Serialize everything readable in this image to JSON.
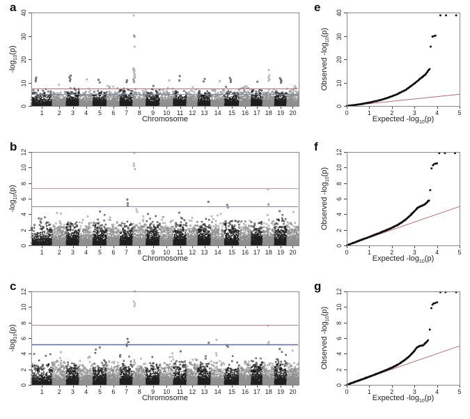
{
  "figure": {
    "background": "#ffffff"
  },
  "chart_data": [
    {
      "id": "a",
      "panel_label": "a",
      "type": "scatter",
      "subtype": "manhattan",
      "xlabel": "Chromosome",
      "ylabel": "-log10(p)",
      "ylabel_parts": {
        "prefix": "-log",
        "sub": "10",
        "suffix": "(p)"
      },
      "ylim": [
        0,
        40
      ],
      "yticks": [
        0,
        10,
        20,
        30,
        40
      ],
      "categories": [
        "1",
        "2",
        "3",
        "4",
        "5",
        "6",
        "7",
        "8",
        "9",
        "10",
        "11",
        "12",
        "13",
        "14",
        "15",
        "16",
        "17",
        "18",
        "19",
        "20"
      ],
      "chr_weights": [
        30,
        20,
        18.5,
        19.5,
        20,
        18.5,
        18.5,
        19,
        19.5,
        19.5,
        19,
        16,
        18.5,
        19.5,
        21,
        17,
        16.5,
        17,
        17.5,
        17
      ],
      "point_colors": {
        "odd_chr": "#1f1f1f",
        "even_chr": "#8f8f8f"
      },
      "grid": false,
      "threshold_lines": [
        {
          "name": "genome-wide-significance",
          "y": 7.5,
          "color": "#c06a72",
          "width": 1
        },
        {
          "name": "suggestive-significance",
          "y": 5.0,
          "color": "#8089a9",
          "width": 1
        }
      ],
      "cloud": {
        "seed": 11,
        "points_per_chr": 820,
        "exp_scale": 1.35,
        "chr_max_base": 6.2,
        "chr_max_jitter": 2.6,
        "solid_below": 4.2
      },
      "peaks": [
        {
          "chr": 8,
          "pos": 0.1,
          "values": [
            38.8,
            30.2,
            29.9,
            29.7,
            25.4,
            16.1,
            15.6,
            15.2,
            14.6,
            13.9,
            13.2,
            12.6,
            12.1,
            11.6,
            11.2,
            10.8,
            10.4,
            10.1
          ]
        },
        {
          "chr": 18,
          "pos": 0.55,
          "values": [
            15.4,
            13.1,
            12.2,
            11.4,
            10.8
          ]
        },
        {
          "chr": 3,
          "pos": 0.3,
          "values": [
            13.0,
            12.3,
            11.5,
            10.7
          ]
        },
        {
          "chr": 1,
          "pos": 0.25,
          "values": [
            12.1,
            11.4,
            10.6
          ]
        },
        {
          "chr": 15,
          "pos": 0.4,
          "values": [
            12.0,
            11.2,
            10.3
          ]
        },
        {
          "chr": 19,
          "pos": 0.5,
          "values": [
            11.9,
            11.2,
            10.6,
            10.0
          ]
        },
        {
          "chr": 11,
          "pos": 0.45,
          "values": [
            12.8,
            10.9
          ]
        },
        {
          "chr": 13,
          "pos": 0.5,
          "values": [
            11.6,
            10.5
          ]
        },
        {
          "chr": 5,
          "pos": 0.45,
          "values": [
            11.2,
            10.1
          ]
        },
        {
          "chr": 7,
          "pos": 0.5,
          "values": [
            11.0,
            10.2
          ]
        },
        {
          "chr": 4,
          "pos": 0.5,
          "values": [
            11.4
          ]
        },
        {
          "chr": 14,
          "pos": 0.6,
          "values": [
            10.6
          ]
        },
        {
          "chr": 17,
          "pos": 0.5,
          "values": [
            10.4
          ]
        },
        {
          "chr": 10,
          "pos": 0.7,
          "values": [
            10.9
          ]
        },
        {
          "chr": 9,
          "pos": 0.5,
          "values": [
            8.6
          ]
        },
        {
          "chr": 2,
          "pos": 0.5,
          "values": [
            9.1
          ]
        }
      ]
    },
    {
      "id": "b",
      "panel_label": "b",
      "type": "scatter",
      "subtype": "manhattan",
      "xlabel": "Chromosome",
      "ylabel": "-log10(p)",
      "ylabel_parts": {
        "prefix": "-log",
        "sub": "10",
        "suffix": "(p)"
      },
      "ylim": [
        0,
        12
      ],
      "yticks": [
        0,
        2,
        4,
        6,
        8,
        10,
        12
      ],
      "categories": [
        "1",
        "2",
        "3",
        "4",
        "5",
        "6",
        "7",
        "8",
        "9",
        "10",
        "11",
        "12",
        "13",
        "14",
        "15",
        "16",
        "17",
        "18",
        "19",
        "20"
      ],
      "chr_weights": [
        30,
        20,
        18.5,
        19.5,
        20,
        18.5,
        18.5,
        19,
        19.5,
        19.5,
        19,
        16,
        18.5,
        19.5,
        21,
        17,
        16.5,
        17,
        17.5,
        17
      ],
      "point_colors": {
        "odd_chr": "#1f1f1f",
        "even_chr": "#8f8f8f"
      },
      "grid": false,
      "threshold_lines": [
        {
          "name": "genome-wide-significance",
          "y": 7.3,
          "color": "#cb9198",
          "width": 1
        },
        {
          "name": "suggestive-significance",
          "y": 5.0,
          "color": "#7d87a6",
          "width": 1
        }
      ],
      "cloud": {
        "seed": 22,
        "points_per_chr": 820,
        "exp_scale": 0.6,
        "chr_max_base": 3.0,
        "chr_max_jitter": 1.8,
        "solid_below": 1.7
      },
      "peaks": [
        {
          "chr": 8,
          "pos": 0.1,
          "values": [
            11.9,
            10.5,
            10.2,
            9.8
          ]
        },
        {
          "chr": 18,
          "pos": 0.5,
          "values": [
            7.2,
            5.3,
            5.2
          ]
        },
        {
          "chr": 7,
          "pos": 0.6,
          "values": [
            5.9,
            5.4,
            5.1
          ]
        },
        {
          "chr": 8,
          "pos": 0.3,
          "values": [
            4.6,
            4.3
          ]
        },
        {
          "chr": 13,
          "pos": 0.85,
          "values": [
            5.6
          ]
        },
        {
          "chr": 15,
          "pos": 0.2,
          "values": [
            5.2,
            4.9
          ]
        },
        {
          "chr": 2,
          "pos": 0.65,
          "values": [
            4.1
          ]
        },
        {
          "chr": 5,
          "pos": 0.45,
          "values": [
            4.35
          ]
        },
        {
          "chr": 11,
          "pos": 0.5,
          "values": [
            4.2
          ]
        },
        {
          "chr": 19,
          "pos": 0.4,
          "values": [
            4.4
          ]
        },
        {
          "chr": 20,
          "pos": 0.5,
          "values": [
            4.3
          ]
        }
      ]
    },
    {
      "id": "c",
      "panel_label": "c",
      "type": "scatter",
      "subtype": "manhattan",
      "xlabel": "Chromosome",
      "ylabel": "-log10(p)",
      "ylabel_parts": {
        "prefix": "-log",
        "sub": "10",
        "suffix": "(p)"
      },
      "ylim": [
        0,
        12
      ],
      "yticks": [
        0,
        2,
        4,
        6,
        8,
        10,
        12
      ],
      "categories": [
        "1",
        "2",
        "3",
        "4",
        "5",
        "6",
        "7",
        "8",
        "9",
        "10",
        "11",
        "12",
        "13",
        "14",
        "15",
        "16",
        "17",
        "18",
        "19",
        "20"
      ],
      "chr_weights": [
        30,
        20,
        18.5,
        19.5,
        20,
        18.5,
        18.5,
        19,
        19.5,
        19.5,
        19,
        16,
        18.5,
        19.5,
        21,
        17,
        16.5,
        17,
        17.5,
        17
      ],
      "point_colors": {
        "odd_chr": "#1f1f1f",
        "even_chr": "#8f8f8f"
      },
      "grid": false,
      "threshold_lines": [
        {
          "name": "genome-wide-significance",
          "y": 7.7,
          "color": "#c57f86",
          "width": 1
        },
        {
          "name": "suggestive-significance",
          "y": 5.2,
          "color": "#5a68a8",
          "width": 1.6
        }
      ],
      "cloud": {
        "seed": 33,
        "points_per_chr": 820,
        "exp_scale": 0.6,
        "chr_max_base": 3.0,
        "chr_max_jitter": 1.8,
        "solid_below": 1.7
      },
      "peaks": [
        {
          "chr": 8,
          "pos": 0.1,
          "values": [
            12.0,
            10.7,
            10.4,
            10.1
          ]
        },
        {
          "chr": 18,
          "pos": 0.5,
          "values": [
            7.6,
            5.5,
            5.3
          ]
        },
        {
          "chr": 7,
          "pos": 0.6,
          "values": [
            5.9,
            5.5,
            5.2,
            5.0
          ]
        },
        {
          "chr": 14,
          "pos": 0.4,
          "values": [
            5.8
          ]
        },
        {
          "chr": 13,
          "pos": 0.85,
          "values": [
            5.4
          ]
        },
        {
          "chr": 15,
          "pos": 0.2,
          "values": [
            5.1,
            4.9
          ]
        },
        {
          "chr": 5,
          "pos": 0.45,
          "values": [
            4.8
          ]
        },
        {
          "chr": 2,
          "pos": 0.65,
          "values": [
            4.2
          ]
        },
        {
          "chr": 11,
          "pos": 0.5,
          "values": [
            4.3
          ]
        },
        {
          "chr": 19,
          "pos": 0.4,
          "values": [
            4.6
          ]
        },
        {
          "chr": 20,
          "pos": 0.5,
          "values": [
            4.4
          ]
        }
      ]
    },
    {
      "id": "e",
      "panel_label": "e",
      "type": "scatter",
      "subtype": "qq",
      "xlabel": "Expected -log10(p)",
      "xlabel_parts": {
        "prefix": "Expected -log",
        "sub": "10",
        "suffix": "(p)"
      },
      "ylabel": "Observed -log10(p)",
      "ylabel_parts": {
        "prefix": "Observed -log",
        "sub": "10",
        "suffix": "(p)"
      },
      "xlim": [
        0,
        5
      ],
      "ylim": [
        0,
        40
      ],
      "xticks": [
        0,
        1,
        2,
        3,
        4,
        5
      ],
      "yticks": [
        0,
        10,
        20,
        30,
        40
      ],
      "grid": false,
      "point_color": "#141414",
      "identity_line": {
        "color": "#c26a6a",
        "from": [
          0,
          0
        ],
        "to": [
          5,
          5
        ]
      },
      "curve": [
        [
          0,
          0
        ],
        [
          0.3,
          0.35
        ],
        [
          0.6,
          0.75
        ],
        [
          1,
          1.45
        ],
        [
          1.4,
          2.3
        ],
        [
          1.8,
          3.4
        ],
        [
          2.2,
          4.9
        ],
        [
          2.6,
          6.8
        ],
        [
          3.0,
          9.6
        ],
        [
          3.2,
          11.2
        ],
        [
          3.35,
          12.4
        ],
        [
          3.5,
          13.6
        ],
        [
          3.6,
          15.0
        ],
        [
          3.68,
          15.9
        ]
      ],
      "outliers": [
        [
          3.72,
          25.4
        ],
        [
          3.8,
          29.7
        ],
        [
          3.86,
          29.9
        ],
        [
          3.93,
          30.1
        ],
        [
          4.15,
          38.8
        ],
        [
          4.4,
          38.8
        ],
        [
          4.85,
          38.8
        ]
      ],
      "jitter": 0.3,
      "seed": 44
    },
    {
      "id": "f",
      "panel_label": "f",
      "type": "scatter",
      "subtype": "qq",
      "xlabel": "Expected -log10(p)",
      "xlabel_parts": {
        "prefix": "Expected -log",
        "sub": "10",
        "suffix": "(p)"
      },
      "ylabel": "Observed -log10(p)",
      "ylabel_parts": {
        "prefix": "Observed -log",
        "sub": "10",
        "suffix": "(p)"
      },
      "xlim": [
        0,
        5
      ],
      "ylim": [
        0,
        12
      ],
      "xticks": [
        0,
        1,
        2,
        3,
        4,
        5
      ],
      "yticks": [
        0,
        2,
        4,
        6,
        8,
        10,
        12
      ],
      "grid": false,
      "point_color": "#141414",
      "identity_line": {
        "color": "#c26a6a",
        "from": [
          0,
          0
        ],
        "to": [
          5,
          5
        ]
      },
      "curve": [
        [
          0,
          0
        ],
        [
          0.5,
          0.55
        ],
        [
          1,
          1.08
        ],
        [
          1.5,
          1.65
        ],
        [
          2,
          2.25
        ],
        [
          2.3,
          2.7
        ],
        [
          2.6,
          3.3
        ],
        [
          2.8,
          3.8
        ],
        [
          3.0,
          4.4
        ],
        [
          3.15,
          4.85
        ],
        [
          3.3,
          5.05
        ],
        [
          3.45,
          5.25
        ],
        [
          3.55,
          5.5
        ],
        [
          3.65,
          5.8
        ]
      ],
      "outliers": [
        [
          3.7,
          7.1
        ],
        [
          3.76,
          9.9
        ],
        [
          3.82,
          10.3
        ],
        [
          3.88,
          10.45
        ],
        [
          3.94,
          10.5
        ],
        [
          4.0,
          10.55
        ],
        [
          4.1,
          11.85
        ],
        [
          4.35,
          11.85
        ],
        [
          4.8,
          11.85
        ]
      ],
      "jitter": 0.1,
      "seed": 55
    },
    {
      "id": "g",
      "panel_label": "g",
      "type": "scatter",
      "subtype": "qq",
      "xlabel": "Expected -log10(p)",
      "xlabel_parts": {
        "prefix": "Expected -log",
        "sub": "10",
        "suffix": "(p)"
      },
      "ylabel": "Observed -log10(p)",
      "ylabel_parts": {
        "prefix": "Observed -log",
        "sub": "10",
        "suffix": "(p)"
      },
      "xlim": [
        0,
        5
      ],
      "ylim": [
        0,
        12
      ],
      "xticks": [
        0,
        1,
        2,
        3,
        4,
        5
      ],
      "yticks": [
        0,
        2,
        4,
        6,
        8,
        10,
        12
      ],
      "grid": false,
      "point_color": "#141414",
      "identity_line": {
        "color": "#c26a6a",
        "from": [
          0,
          0
        ],
        "to": [
          5,
          5
        ]
      },
      "curve": [
        [
          0,
          0
        ],
        [
          0.5,
          0.52
        ],
        [
          1,
          1.05
        ],
        [
          1.5,
          1.6
        ],
        [
          2,
          2.2
        ],
        [
          2.3,
          2.65
        ],
        [
          2.6,
          3.25
        ],
        [
          2.8,
          3.75
        ],
        [
          3.0,
          4.35
        ],
        [
          3.1,
          4.8
        ],
        [
          3.25,
          5.0
        ],
        [
          3.4,
          5.1
        ],
        [
          3.5,
          5.4
        ],
        [
          3.62,
          5.75
        ]
      ],
      "outliers": [
        [
          3.68,
          7.1
        ],
        [
          3.75,
          9.85
        ],
        [
          3.8,
          10.3
        ],
        [
          3.85,
          10.45
        ],
        [
          3.92,
          10.5
        ],
        [
          4.0,
          10.6
        ],
        [
          4.15,
          11.9
        ],
        [
          4.38,
          11.9
        ],
        [
          4.85,
          11.9
        ]
      ],
      "jitter": 0.1,
      "seed": 66
    }
  ]
}
